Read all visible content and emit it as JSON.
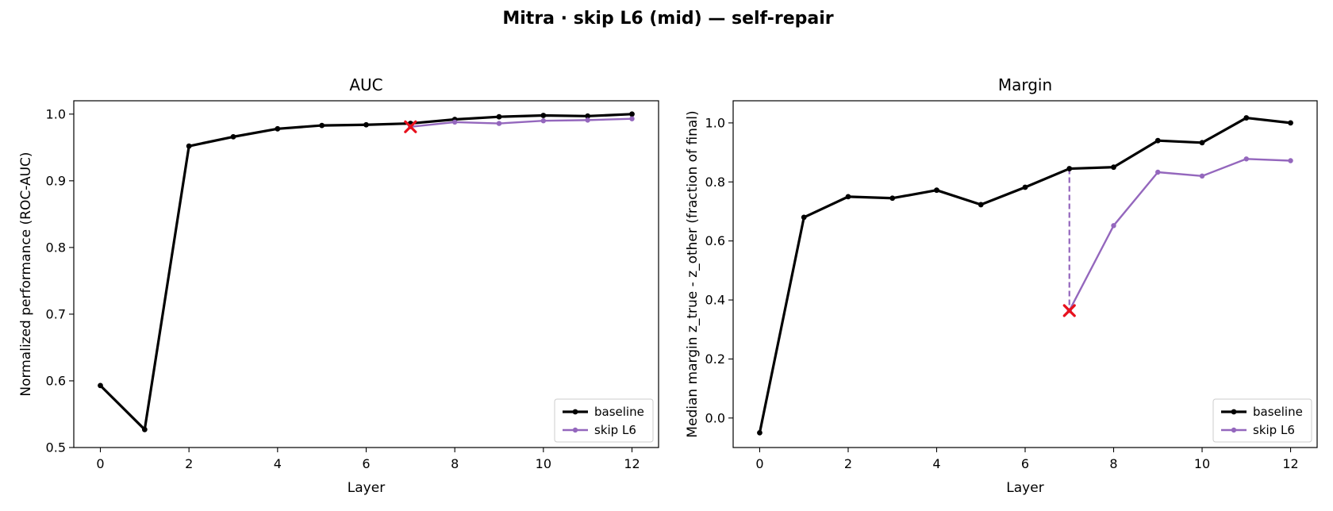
{
  "figure": {
    "title": "Mitra · skip L6 (mid) — self-repair"
  },
  "colors": {
    "baseline": "#000000",
    "skip": "#9467bd",
    "marker": "#e8111e",
    "frame": "#000000"
  },
  "chart_data": [
    {
      "type": "line",
      "title": "AUC",
      "xlabel": "Layer",
      "ylabel": "Normalized performance (ROC-AUC)",
      "xlim": [
        -0.6,
        12.6
      ],
      "ylim": [
        0.5,
        1.02
      ],
      "xticks": [
        0,
        2,
        4,
        6,
        8,
        10,
        12
      ],
      "yticks": [
        0.5,
        0.6,
        0.7,
        0.8,
        0.9,
        1.0
      ],
      "ytick_labels": [
        "0.5",
        "0.6",
        "0.7",
        "0.8",
        "0.9",
        "1.0"
      ],
      "legend_position": "lower-right",
      "grid": false,
      "series": [
        {
          "name": "baseline",
          "x": [
            0,
            1,
            2,
            3,
            4,
            5,
            6,
            7,
            8,
            9,
            10,
            11,
            12
          ],
          "y": [
            0.593,
            0.527,
            0.952,
            0.966,
            0.978,
            0.983,
            0.984,
            0.986,
            0.992,
            0.996,
            0.998,
            0.997,
            1.0
          ]
        },
        {
          "name": "skip L6",
          "x": [
            7,
            8,
            9,
            10,
            11,
            12
          ],
          "y": [
            0.981,
            0.988,
            0.986,
            0.99,
            0.991,
            0.993
          ]
        }
      ],
      "damage_marker": {
        "x": 7,
        "y": 0.981,
        "from_y": 0.986
      }
    },
    {
      "type": "line",
      "title": "Margin",
      "xlabel": "Layer",
      "ylabel": "Median margin z_true - z_other (fraction of final)",
      "xlim": [
        -0.6,
        12.6
      ],
      "ylim": [
        -0.1,
        1.075
      ],
      "xticks": [
        0,
        2,
        4,
        6,
        8,
        10,
        12
      ],
      "yticks": [
        0.0,
        0.2,
        0.4,
        0.6,
        0.8,
        1.0
      ],
      "ytick_labels": [
        "0.0",
        "0.2",
        "0.4",
        "0.6",
        "0.8",
        "1.0"
      ],
      "legend_position": "lower-right",
      "grid": false,
      "series": [
        {
          "name": "baseline",
          "x": [
            0,
            1,
            2,
            3,
            4,
            5,
            6,
            7,
            8,
            9,
            10,
            11,
            12
          ],
          "y": [
            -0.05,
            0.68,
            0.75,
            0.745,
            0.772,
            0.723,
            0.782,
            0.845,
            0.85,
            0.94,
            0.933,
            1.017,
            1.0
          ]
        },
        {
          "name": "skip L6",
          "x": [
            7,
            8,
            9,
            10,
            11,
            12
          ],
          "y": [
            0.364,
            0.652,
            0.833,
            0.82,
            0.878,
            0.872
          ]
        }
      ],
      "damage_marker": {
        "x": 7,
        "y": 0.364,
        "from_y": 0.845
      }
    }
  ]
}
